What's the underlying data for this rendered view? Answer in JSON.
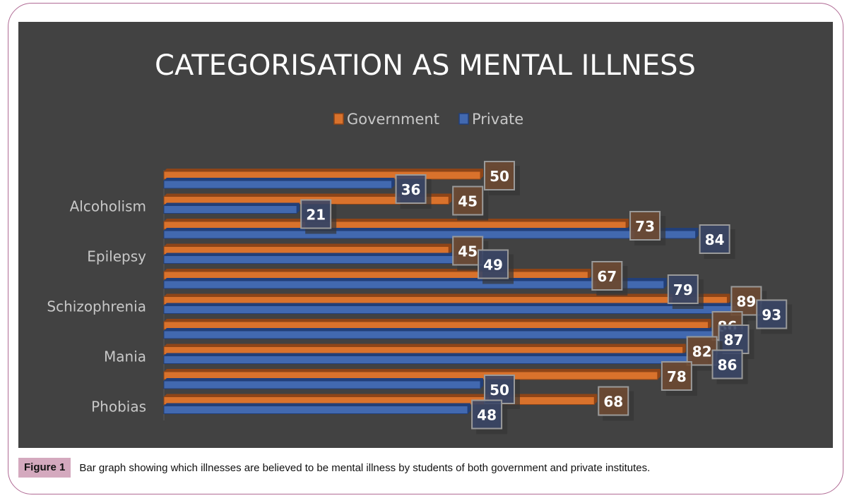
{
  "chart_data": {
    "type": "bar",
    "orientation": "horizontal",
    "title": "CATEGORISATION AS MENTAL ILLNESS",
    "xlabel": "",
    "ylabel": "",
    "xlim": [
      0,
      100
    ],
    "grid": false,
    "legend": {
      "position": "top-center",
      "entries": [
        "Government",
        "Private"
      ]
    },
    "categories": [
      "",
      "Alcoholism",
      "",
      "Epilepsy",
      "",
      "Schizophrenia",
      "",
      "Mania",
      "",
      "Phobias"
    ],
    "series": [
      {
        "name": "Government",
        "color": "#d9722c",
        "values": [
          50,
          45,
          73,
          45,
          67,
          89,
          86,
          82,
          78,
          68
        ]
      },
      {
        "name": "Private",
        "color": "#4269b0",
        "values": [
          36,
          21,
          84,
          49,
          79,
          93,
          87,
          86,
          50,
          48
        ]
      }
    ],
    "data_labels": true
  },
  "caption": {
    "label": "Figure 1",
    "text": "Bar graph showing which illnesses are believed to be mental illness by students of both government and private institutes."
  }
}
